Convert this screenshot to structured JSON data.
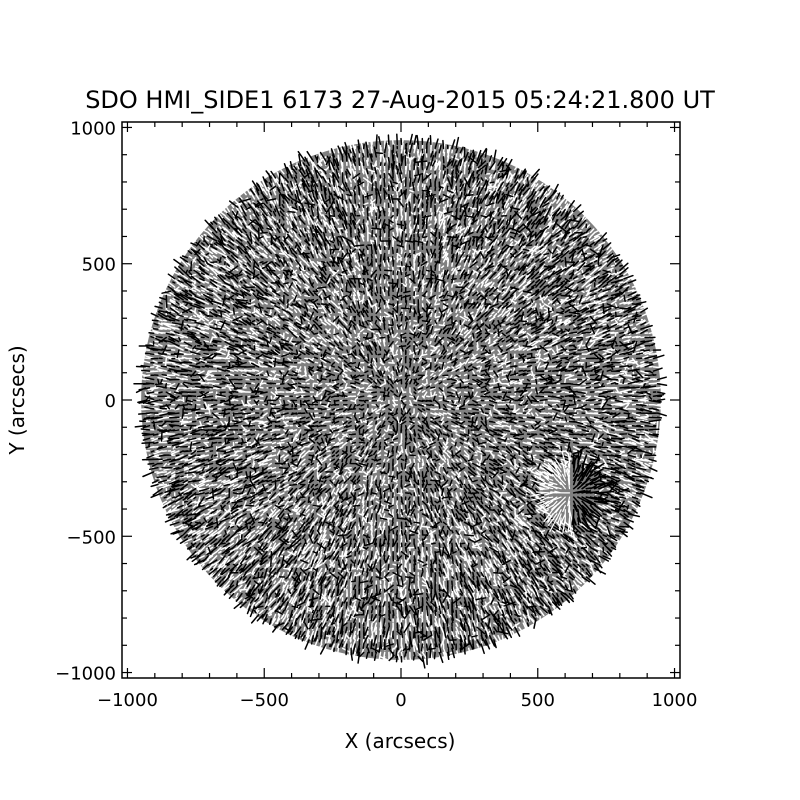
{
  "chart_data": {
    "type": "scatter",
    "title": "SDO HMI_SIDE1 6173 27-Aug-2015 05:24:21.800 UT",
    "xlabel": "X (arcsecs)",
    "ylabel": "Y (arcsecs)",
    "xlim": [
      -1020,
      1020
    ],
    "ylim": [
      -1020,
      1020
    ],
    "xticks": [
      -1000,
      -500,
      0,
      500,
      1000
    ],
    "xtick_labels": [
      "−1000",
      "−500",
      "0",
      "500",
      "1000"
    ],
    "yticks": [
      -1000,
      -500,
      0,
      500,
      1000
    ],
    "ytick_labels": [
      "−1000",
      "−500",
      "0",
      "500",
      "1000"
    ],
    "grid": false,
    "disk": {
      "center": [
        0,
        0
      ],
      "radius_arcsec": 950
    },
    "active_region": {
      "center": [
        620,
        -340
      ],
      "extent_arcsec": 110
    },
    "colors": {
      "background": "#ffffff",
      "disk_fill": "#808080",
      "positive_vectors": "#ffffff",
      "negative_vectors": "#000000",
      "axes": "#000000"
    }
  }
}
